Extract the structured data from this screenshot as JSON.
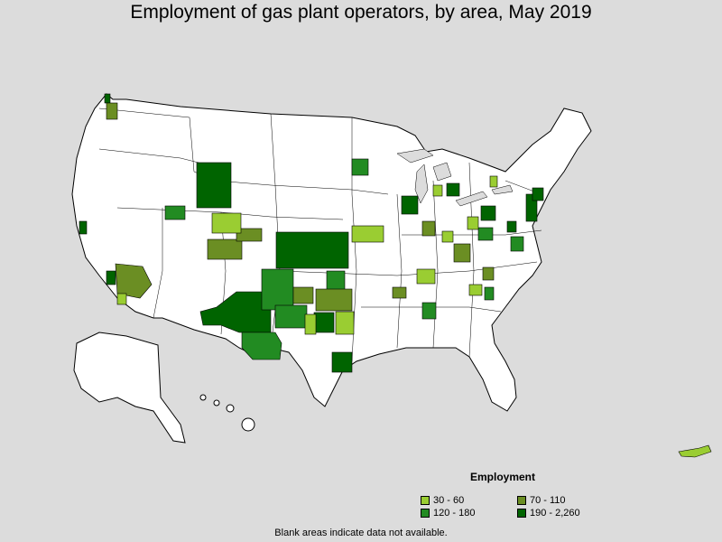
{
  "title": "Employment of gas plant operators, by area, May 2019",
  "legend": {
    "title": "Employment",
    "items": [
      {
        "label": "30 - 60",
        "color": "#9acd32"
      },
      {
        "label": "70 - 110",
        "color": "#6b8e23"
      },
      {
        "label": "120 - 180",
        "color": "#228b22"
      },
      {
        "label": "190 - 2,260",
        "color": "#006400"
      }
    ]
  },
  "footnote": "Blank areas indicate data not available.",
  "colors": {
    "background": "#dcdcdc",
    "land": "#ffffff",
    "border": "#000000",
    "c1": "#9acd32",
    "c2": "#6b8e23",
    "c3": "#228b22",
    "c4": "#006400"
  }
}
